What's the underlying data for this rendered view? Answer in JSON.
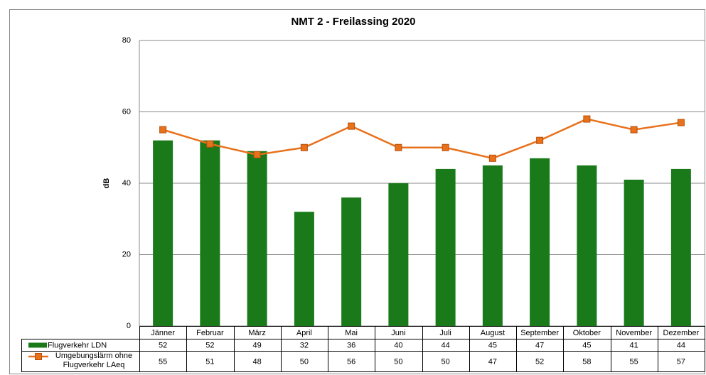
{
  "chart_data": {
    "type": "bar_line",
    "title": "NMT 2 - Freilassing 2020",
    "y_label": "dB",
    "categories": [
      "Jänner",
      "Februar",
      "März",
      "April",
      "Mai",
      "Juni",
      "Juli",
      "August",
      "September",
      "Oktober",
      "November",
      "Dezember"
    ],
    "series": [
      {
        "name": "Flugverkehr LDN",
        "type": "bar",
        "color": "#1a7a1a",
        "values": [
          52,
          52,
          49,
          32,
          36,
          40,
          44,
          45,
          47,
          45,
          41,
          44
        ]
      },
      {
        "name": "Umgebungslärm ohne Flugverkehr LAeq",
        "type": "line",
        "color": "#e8711c",
        "values": [
          55,
          51,
          48,
          50,
          56,
          50,
          50,
          47,
          52,
          58,
          55,
          57
        ]
      }
    ],
    "ylim": [
      0,
      80
    ],
    "yticks": [
      0,
      20,
      40,
      60,
      80
    ],
    "grid": true
  }
}
